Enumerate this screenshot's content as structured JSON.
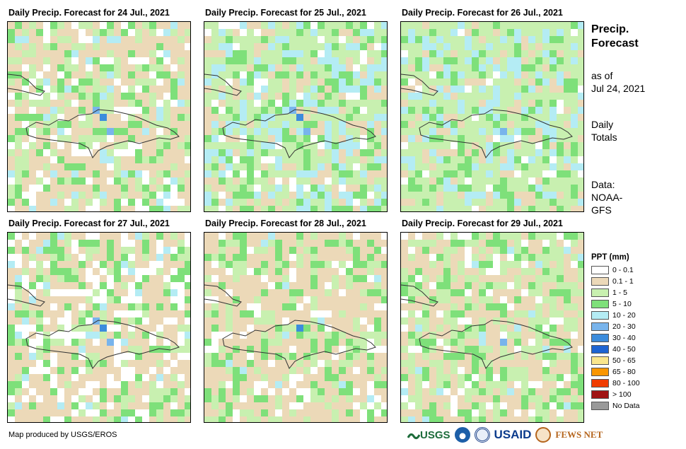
{
  "panels": [
    {
      "title": "Daily Precip. Forecast for 24 Jul., 2021",
      "seed": 11,
      "white": 0.16,
      "tan": 0.42,
      "blueBias": 0.06
    },
    {
      "title": "Daily Precip. Forecast for 25 Jul., 2021",
      "seed": 23,
      "white": 0.06,
      "tan": 0.18,
      "blueBias": 0.2
    },
    {
      "title": "Daily Precip. Forecast for 26 Jul., 2021",
      "seed": 37,
      "white": 0.03,
      "tan": 0.14,
      "blueBias": 0.16
    },
    {
      "title": "Daily Precip. Forecast for 27 Jul., 2021",
      "seed": 41,
      "white": 0.22,
      "tan": 0.45,
      "blueBias": 0.04
    },
    {
      "title": "Daily Precip. Forecast for 28 Jul., 2021",
      "seed": 53,
      "white": 0.12,
      "tan": 0.52,
      "blueBias": 0.01
    },
    {
      "title": "Daily Precip. Forecast for 29 Jul., 2021",
      "seed": 67,
      "white": 0.1,
      "tan": 0.4,
      "blueBias": 0.03
    }
  ],
  "side": {
    "title_line1": "Precip.",
    "title_line2": "Forecast",
    "asof_line1": "as of",
    "asof_line2": "Jul 24, 2021",
    "daily_line1": "Daily",
    "daily_line2": "Totals",
    "data_line1": "Data:",
    "data_line2": "NOAA-",
    "data_line3": "GFS"
  },
  "legend": {
    "title": "PPT (mm)",
    "items": [
      {
        "label": "0 - 0.1",
        "color": "#ffffff"
      },
      {
        "label": "0.1 - 1",
        "color": "#ecd9b8"
      },
      {
        "label": "1 - 5",
        "color": "#c8f0b0"
      },
      {
        "label": "5 - 10",
        "color": "#7ee07a"
      },
      {
        "label": "10 - 20",
        "color": "#b4ecf4"
      },
      {
        "label": "20 - 30",
        "color": "#78b4ec"
      },
      {
        "label": "30 - 40",
        "color": "#3c8cdc"
      },
      {
        "label": "40 - 50",
        "color": "#1e64d2"
      },
      {
        "label": "50 - 65",
        "color": "#fae68c"
      },
      {
        "label": "65 - 80",
        "color": "#fa9600"
      },
      {
        "label": "80 - 100",
        "color": "#f03c00"
      },
      {
        "label": "> 100",
        "color": "#a01414"
      },
      {
        "label": "No Data",
        "color": "#999999"
      }
    ]
  },
  "credit": "Map produced by USGS/EROS",
  "logos": {
    "usgs": "USGS",
    "usaid": "USAID",
    "fewsnet": "FEWS NET"
  }
}
